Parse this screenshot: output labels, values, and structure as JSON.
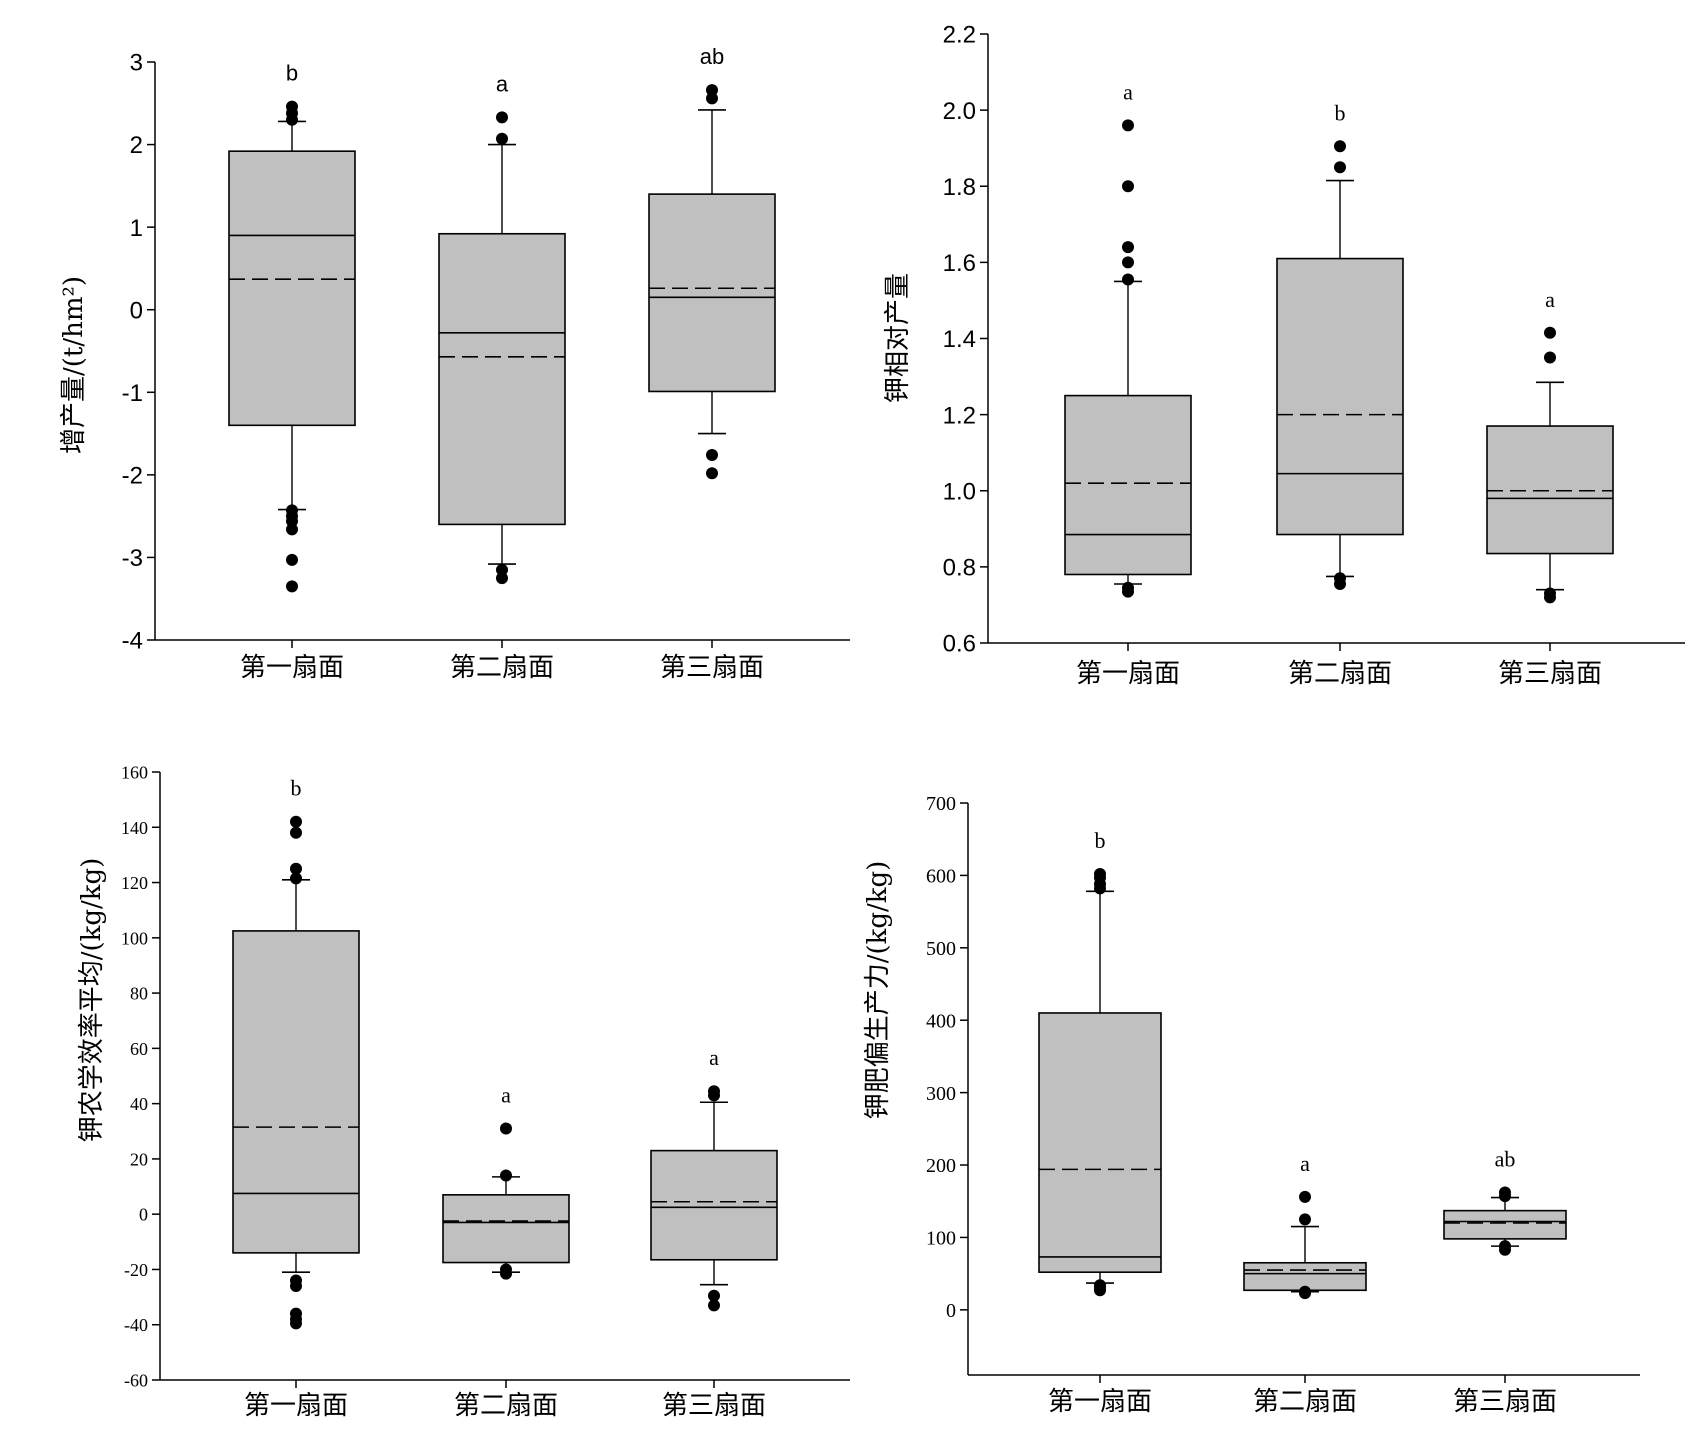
{
  "categories": [
    "第一扇面",
    "第二扇面",
    "第三扇面"
  ],
  "chart_data": [
    {
      "type": "box",
      "ylabel": "增产量/(t/hm²)",
      "ylim": [
        -4,
        3
      ],
      "yticks": [
        3,
        2,
        1,
        0,
        -1,
        -2,
        -3,
        -4
      ],
      "categories": [
        "第一扇面",
        "第二扇面",
        "第三扇面"
      ],
      "boxes": [
        {
          "q1": -1.4,
          "median": 0.9,
          "q3": 1.92,
          "mean": 0.37,
          "whisker_low": -2.42,
          "whisker_high": 2.28,
          "outliers": [
            2.46,
            2.38,
            2.3,
            -2.43,
            -2.5,
            -2.56,
            -2.66,
            -3.03,
            -3.35
          ],
          "letter": "b"
        },
        {
          "q1": -2.6,
          "median": -0.28,
          "q3": 0.92,
          "mean": -0.57,
          "whisker_low": -3.08,
          "whisker_high": 2.0,
          "outliers": [
            2.33,
            2.07,
            -3.15,
            -3.25
          ],
          "letter": "a"
        },
        {
          "q1": -0.99,
          "median": 0.15,
          "q3": 1.4,
          "mean": 0.26,
          "whisker_low": -1.5,
          "whisker_high": 2.42,
          "outliers": [
            2.66,
            2.56,
            -1.76,
            -1.98
          ],
          "letter": "ab"
        }
      ]
    },
    {
      "type": "box",
      "ylabel": "钾相对产量",
      "ylim": [
        0.6,
        2.2
      ],
      "yticks": [
        "2.2",
        "2.0",
        "1.8",
        "1.6",
        "1.4",
        "1.2",
        "1.0",
        "0.8",
        "0.6"
      ],
      "categories": [
        "第一扇面",
        "第二扇面",
        "第三扇面"
      ],
      "boxes": [
        {
          "q1": 0.78,
          "median": 0.885,
          "q3": 1.25,
          "mean": 1.02,
          "whisker_low": 0.755,
          "whisker_high": 1.55,
          "outliers": [
            1.96,
            1.8,
            1.64,
            1.6,
            1.555,
            0.745,
            0.735
          ],
          "letter": "a"
        },
        {
          "q1": 0.885,
          "median": 1.045,
          "q3": 1.61,
          "mean": 1.2,
          "whisker_low": 0.775,
          "whisker_high": 1.815,
          "outliers": [
            1.905,
            1.85,
            0.77,
            0.755
          ],
          "letter": "b"
        },
        {
          "q1": 0.835,
          "median": 0.98,
          "q3": 1.17,
          "mean": 1.0,
          "whisker_low": 0.74,
          "whisker_high": 1.285,
          "outliers": [
            1.415,
            1.35,
            0.73,
            0.72
          ],
          "letter": "a"
        }
      ]
    },
    {
      "type": "box",
      "ylabel": "钾农学效率平均/(kg/kg)",
      "ylim": [
        -60,
        160
      ],
      "yticks": [
        160,
        140,
        120,
        100,
        80,
        60,
        40,
        20,
        0,
        -20,
        -40,
        -60
      ],
      "categories": [
        "第一扇面",
        "第二扇面",
        "第三扇面"
      ],
      "boxes": [
        {
          "q1": -14,
          "median": 7.5,
          "q3": 102.5,
          "mean": 31.5,
          "whisker_low": -21,
          "whisker_high": 121,
          "outliers": [
            142,
            138,
            125,
            121.5,
            -24,
            -26,
            -36,
            -38,
            -39.5
          ],
          "letter": "b"
        },
        {
          "q1": -17.5,
          "median": -3,
          "q3": 7,
          "mean": -2.5,
          "whisker_low": -21,
          "whisker_high": 13.5,
          "outliers": [
            31,
            14,
            -20,
            -21.5
          ],
          "letter": "a"
        },
        {
          "q1": -16.5,
          "median": 2.5,
          "q3": 23,
          "mean": 4.5,
          "whisker_low": -25.5,
          "whisker_high": 40.5,
          "outliers": [
            44.5,
            43,
            -29.5,
            -33
          ],
          "letter": "a"
        }
      ]
    },
    {
      "type": "box",
      "ylabel": "钾肥偏生产力/(kg/kg)",
      "ylim": [
        -90,
        700
      ],
      "yticks": [
        700,
        600,
        500,
        400,
        300,
        200,
        100,
        0
      ],
      "categories": [
        "第一扇面",
        "第二扇面",
        "第三扇面"
      ],
      "boxes": [
        {
          "q1": 52,
          "median": 73,
          "q3": 410,
          "mean": 194,
          "whisker_low": 37,
          "whisker_high": 578,
          "outliers": [
            602,
            597,
            588,
            582,
            34,
            30,
            27
          ],
          "letter": "b"
        },
        {
          "q1": 27,
          "median": 50,
          "q3": 65,
          "mean": 55,
          "whisker_low": 25,
          "whisker_high": 115,
          "outliers": [
            156,
            125,
            25,
            23
          ],
          "letter": "a"
        },
        {
          "q1": 98,
          "median": 122,
          "q3": 137,
          "mean": 120,
          "whisker_low": 88,
          "whisker_high": 155,
          "outliers": [
            162,
            157,
            88,
            83
          ],
          "letter": "ab"
        }
      ]
    }
  ]
}
